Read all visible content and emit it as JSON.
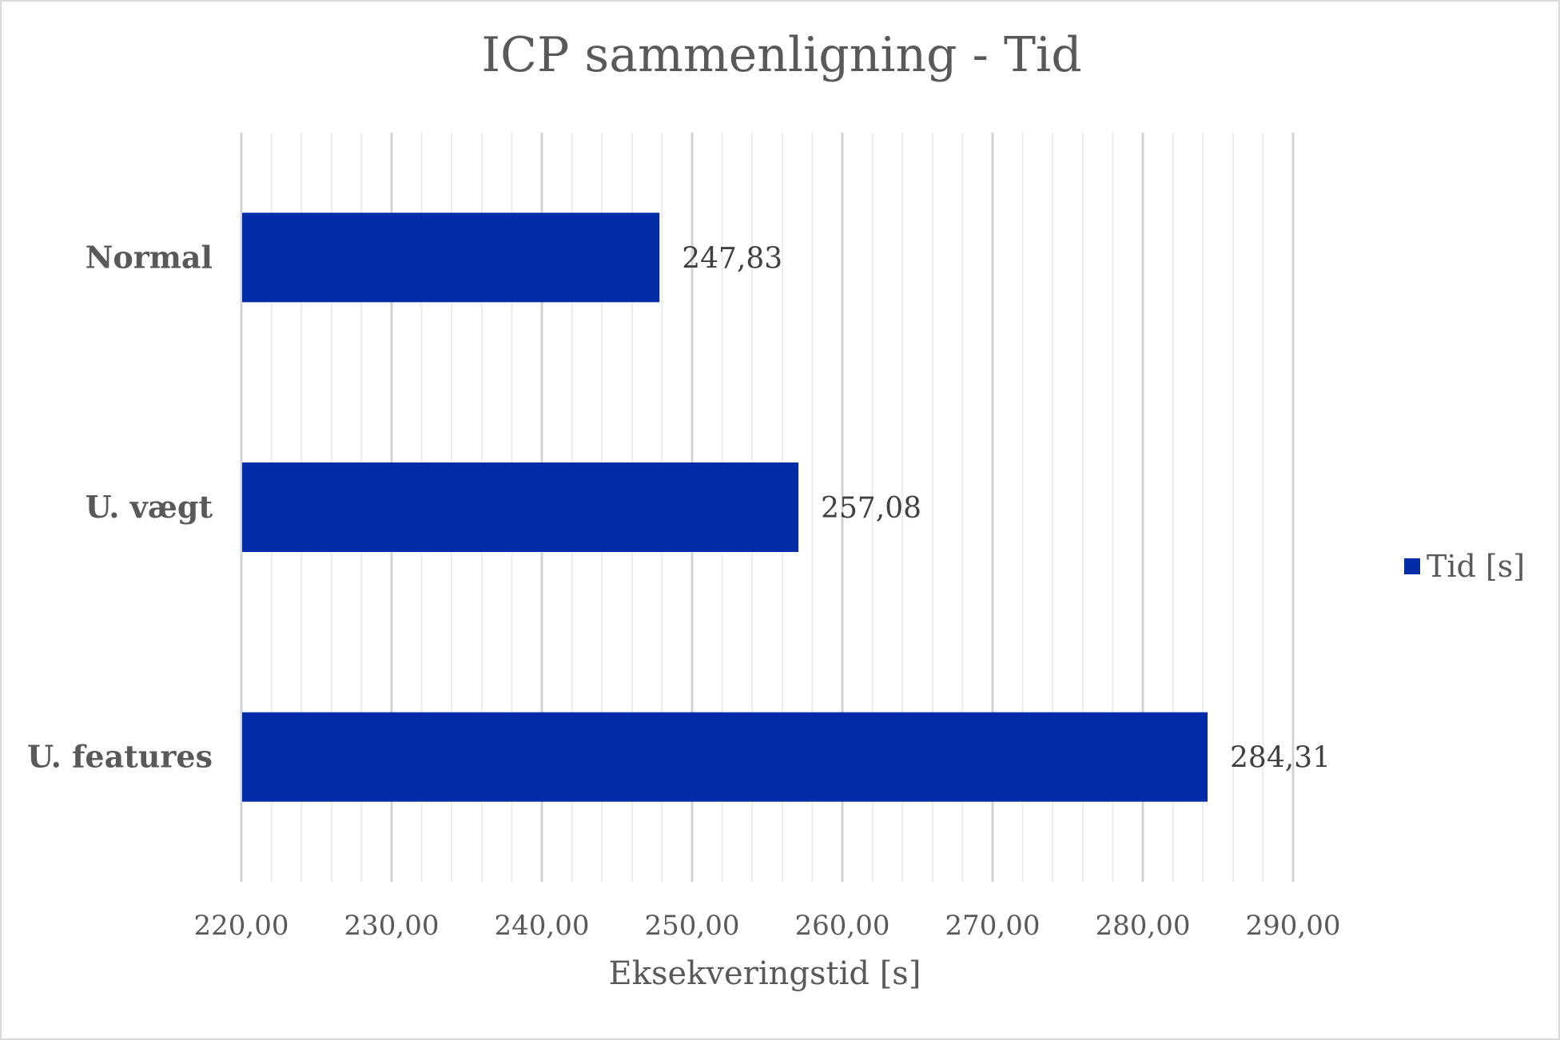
{
  "chart_data": {
    "type": "bar",
    "orientation": "horizontal",
    "title": "ICP sammenligning - Tid",
    "xlabel": "Eksekveringstid [s]",
    "ylabel": "",
    "categories": [
      "Normal",
      "U. vægt",
      "U. features"
    ],
    "series": [
      {
        "name": "Tid [s]",
        "values": [
          247.83,
          257.08,
          284.31
        ],
        "data_labels": [
          "247,83",
          "257,08",
          "284,31"
        ],
        "color": "#032ca8"
      }
    ],
    "xlim": [
      220,
      290
    ],
    "x_ticks": [
      220,
      230,
      240,
      250,
      260,
      270,
      280,
      290
    ],
    "x_tick_labels": [
      "220,00",
      "230,00",
      "240,00",
      "250,00",
      "260,00",
      "270,00",
      "280,00",
      "290,00"
    ],
    "major_grid": true,
    "minor_grid": true,
    "legend_position": "right"
  }
}
